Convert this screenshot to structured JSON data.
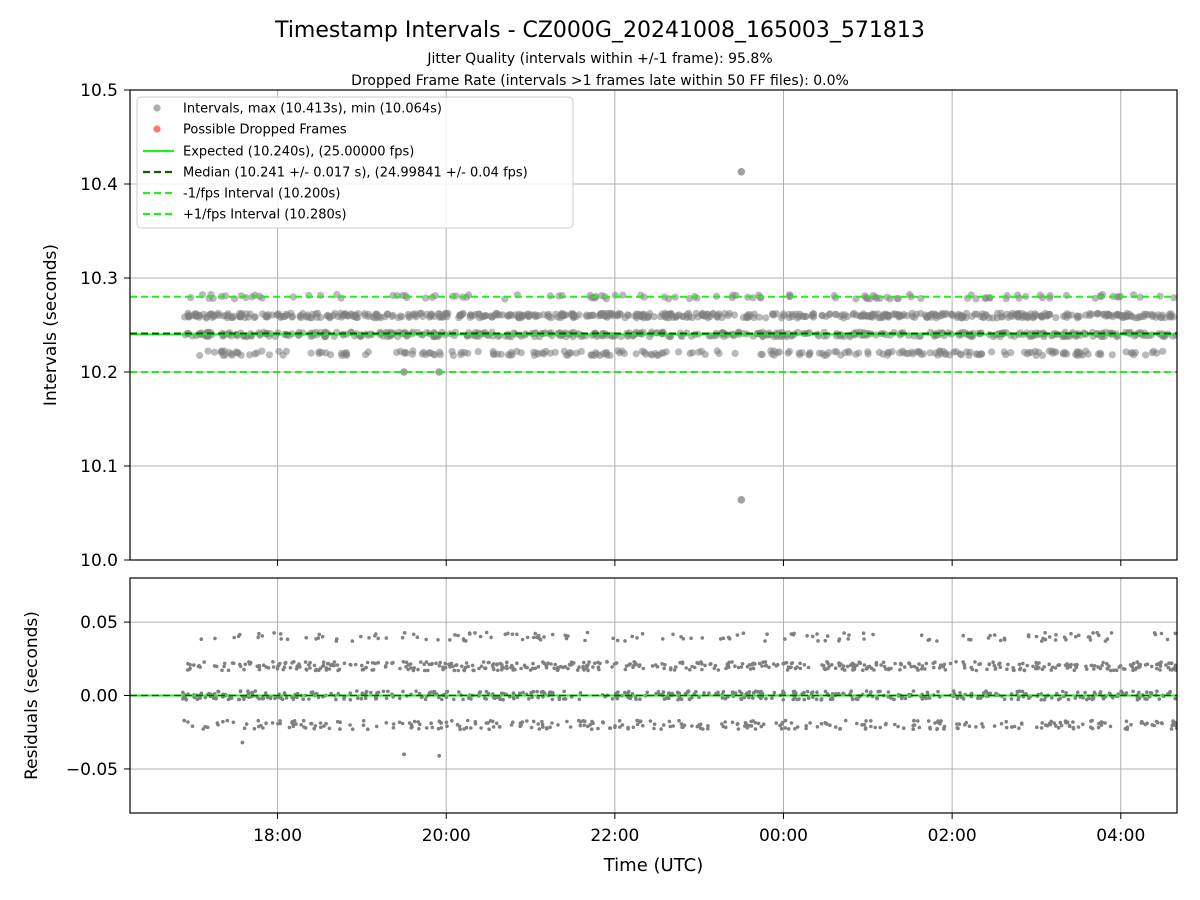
{
  "title": "Timestamp Intervals - CZ000G_20241008_165003_571813",
  "subtitle_1": "Jitter Quality (intervals within +/-1 frame): 95.8%",
  "subtitle_2": "Dropped Frame Rate (intervals >1 frames late within 50 FF files): 0.0%",
  "colors": {
    "points": "#808080",
    "points_top": "#a0a0a0",
    "dropped": "#ff6060",
    "expected": "#22ee22",
    "median": "#006400",
    "fps_bounds": "#22ee22",
    "grid": "#b0b0b0"
  },
  "chart_data": [
    {
      "type": "scatter",
      "ylabel": "Intervals (seconds)",
      "ylim": [
        10.0,
        10.5
      ],
      "yticks": [
        10.0,
        10.1,
        10.2,
        10.3,
        10.4,
        10.5
      ],
      "ytick_labels": [
        "10.0",
        "10.1",
        "10.2",
        "10.3",
        "10.4",
        "10.5"
      ],
      "xlim": [
        "16:15",
        "04:40"
      ],
      "data_x_range": [
        "16:52",
        "04:40"
      ],
      "grid": true,
      "legend_position": "top-left",
      "legend": [
        "Intervals, max (10.413s), min (10.064s)",
        "Possible Dropped Frames",
        "Expected (10.240s), (25.00000 fps)",
        "Median (10.241 +/- 0.017 s), (24.99841 +/- 0.04 fps)",
        "-1/fps Interval (10.200s)",
        "+1/fps Interval (10.280s)"
      ],
      "reference_lines": {
        "expected": 10.24,
        "median": 10.241,
        "minus_1_fps": 10.2,
        "plus_1_fps": 10.28
      },
      "point_bands": [
        10.22,
        10.24,
        10.26,
        10.28
      ],
      "outliers": [
        {
          "x": "23:30",
          "y": 10.413
        },
        {
          "x": "23:30",
          "y": 10.064
        },
        {
          "x": "19:30",
          "y": 10.2
        },
        {
          "x": "19:55",
          "y": 10.2
        }
      ]
    },
    {
      "type": "scatter",
      "xlabel": "Time (UTC)",
      "ylabel": "Residuals (seconds)",
      "ylim": [
        -0.08,
        0.08
      ],
      "yticks": [
        -0.05,
        0.0,
        0.05
      ],
      "ytick_labels": [
        "−0.05",
        "0.00",
        "0.05"
      ],
      "xtick_labels": [
        "18:00",
        "20:00",
        "22:00",
        "00:00",
        "02:00",
        "04:00"
      ],
      "grid": true,
      "zero_line": 0.0,
      "point_bands": [
        -0.02,
        0.0,
        0.02,
        0.04
      ],
      "outliers": [
        {
          "x": "19:30",
          "y": -0.04
        },
        {
          "x": "19:55",
          "y": -0.041
        },
        {
          "x": "17:35",
          "y": -0.032
        }
      ]
    }
  ]
}
